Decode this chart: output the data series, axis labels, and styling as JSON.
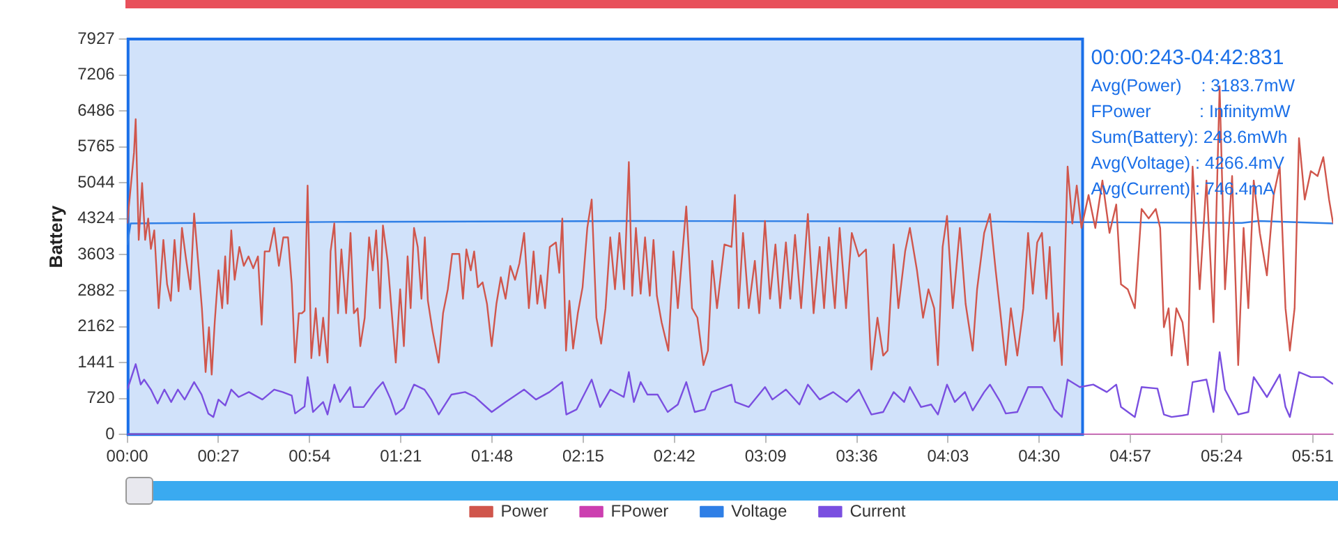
{
  "chart_data": {
    "type": "line",
    "ylabel": "Battery",
    "xlim": [
      0,
      357
    ],
    "ylim": [
      0,
      7927
    ],
    "xticks": [
      {
        "value": 0,
        "label": "00:00"
      },
      {
        "value": 27,
        "label": "00:27"
      },
      {
        "value": 54,
        "label": "00:54"
      },
      {
        "value": 81,
        "label": "01:21"
      },
      {
        "value": 108,
        "label": "01:48"
      },
      {
        "value": 135,
        "label": "02:15"
      },
      {
        "value": 162,
        "label": "02:42"
      },
      {
        "value": 189,
        "label": "03:09"
      },
      {
        "value": 216,
        "label": "03:36"
      },
      {
        "value": 243,
        "label": "04:03"
      },
      {
        "value": 270,
        "label": "04:30"
      },
      {
        "value": 297,
        "label": "04:57"
      },
      {
        "value": 324,
        "label": "05:24"
      },
      {
        "value": 351,
        "label": "05:51"
      }
    ],
    "yticks": [
      0,
      720,
      1441,
      2162,
      2882,
      3603,
      4324,
      5044,
      5765,
      6486,
      7206,
      7927
    ],
    "legend": "bottom",
    "marker": "none",
    "line_style": "solid",
    "bands": [
      {
        "axis": "x",
        "from": 0.243,
        "to": 282.831,
        "label": "00:00:243-04:42:831",
        "color": "#1a6fe8"
      }
    ],
    "annotations": [
      "Avg(Power)    : 3183.7mW",
      "FPower          : InfinitymW",
      "Sum(Battery): 248.6mWh",
      "Avg(Voltage) : 4266.4mV",
      "Avg(Current) : 746.4mA"
    ],
    "series": [
      {
        "name": "Power",
        "color": "#d0564c",
        "x": [
          0,
          2,
          2.5,
          3.4,
          4.4,
          5.3,
          6.2,
          7,
          8,
          9.3,
          10.7,
          11.8,
          12.9,
          14,
          15.2,
          16.2,
          17.3,
          18.7,
          19.8,
          21.2,
          22.1,
          23.2,
          24.2,
          25,
          25.9,
          27,
          28.1,
          29,
          29.7,
          30.8,
          31.8,
          33.2,
          34.5,
          35.9,
          37.3,
          38.7,
          39.8,
          40.7,
          42.1,
          43.5,
          44.9,
          46.2,
          47.6,
          48.7,
          49.7,
          50.8,
          51.7,
          52.5,
          53.4,
          54.5,
          55.8,
          56.9,
          58,
          59.3,
          60.2,
          61.3,
          62.4,
          63.4,
          64.8,
          66.1,
          67.1,
          68.2,
          69,
          70.3,
          71.6,
          72.7,
          73.7,
          74.8,
          75.7,
          77.1,
          78.2,
          79.5,
          80.8,
          81.9,
          83,
          83.9,
          84.9,
          86,
          87.1,
          88.1,
          89,
          90.4,
          92.2,
          93.5,
          94.9,
          96.2,
          98.3,
          99.4,
          100.4,
          101.7,
          102.7,
          103.8,
          105.2,
          106.5,
          107.9,
          109.3,
          110.6,
          112,
          113.4,
          114.8,
          116.1,
          117.5,
          118.9,
          120.3,
          121.4,
          122.4,
          123.7,
          125.1,
          126.9,
          127.9,
          128.8,
          129.9,
          130.9,
          132,
          133.4,
          134.8,
          136.2,
          137.5,
          138.9,
          140.3,
          141.6,
          143,
          144.4,
          145.7,
          147.1,
          148.5,
          149.5,
          150.6,
          152,
          153.3,
          154.7,
          155.8,
          156.8,
          158.2,
          160.2,
          161.7,
          163,
          165.5,
          167.2,
          168.8,
          170.6,
          171.9,
          173.2,
          174.6,
          176.8,
          178.9,
          179.9,
          181,
          182.3,
          184,
          185.8,
          187.1,
          188.8,
          190.3,
          191.9,
          193.3,
          195,
          196.3,
          197.7,
          199.5,
          201.5,
          203.2,
          205,
          206.3,
          207.7,
          209.5,
          210.9,
          212.8,
          214.5,
          216.6,
          218.7,
          220.3,
          222.1,
          223.8,
          225.1,
          226.9,
          228.3,
          230.3,
          231.7,
          233.8,
          235.6,
          237.2,
          238.9,
          240,
          241.4,
          242.7,
          244.4,
          246.5,
          248.2,
          250.3,
          251.6,
          253.7,
          255.4,
          257.1,
          258.5,
          260.1,
          261.6,
          263.5,
          265.3,
          266.7,
          268.1,
          269.4,
          270.8,
          272.1,
          273.1,
          274.5,
          275.6,
          276.7,
          278.4,
          279.8,
          281.1,
          282.5,
          284.6,
          286.6,
          288.7,
          290.8,
          292.8,
          294.2,
          296.2,
          298.3,
          300.3,
          302.4,
          304.5,
          305.8,
          306.9,
          308.3,
          309.2,
          310.6,
          312.4,
          314,
          315.4,
          317.5,
          319.5,
          321.6,
          323.4,
          325,
          327.1,
          328.9,
          330.5,
          331.9,
          333.5,
          335.3,
          337.4,
          339.4,
          341.2,
          342.9,
          344.2,
          345.6,
          346.9,
          348.6,
          350.4,
          352.4,
          354.1,
          355.8,
          357
        ],
        "values": [
          4230,
          5650,
          6320,
          3900,
          5040,
          3900,
          4330,
          3720,
          4090,
          2530,
          3900,
          3010,
          2680,
          3900,
          2870,
          4140,
          3570,
          2910,
          4430,
          3290,
          2530,
          1250,
          2150,
          1200,
          2250,
          3290,
          2530,
          3570,
          2620,
          4090,
          3100,
          3760,
          3380,
          3570,
          3330,
          3570,
          2200,
          3670,
          3670,
          4140,
          3380,
          3950,
          3950,
          3010,
          1440,
          2430,
          2430,
          2480,
          4990,
          1530,
          2530,
          1580,
          2340,
          1440,
          3670,
          4230,
          2430,
          3710,
          2430,
          4040,
          2430,
          2530,
          1770,
          2340,
          3950,
          3290,
          4090,
          2530,
          4190,
          3480,
          2530,
          1440,
          2910,
          1770,
          3570,
          2530,
          4140,
          3760,
          2720,
          3950,
          2680,
          2070,
          1440,
          2430,
          2910,
          3620,
          3620,
          2720,
          3710,
          3290,
          3670,
          2950,
          3050,
          2620,
          1770,
          2620,
          3150,
          2720,
          3380,
          3100,
          3430,
          4040,
          2530,
          3670,
          2620,
          3190,
          2530,
          3760,
          3850,
          3240,
          4330,
          1680,
          2680,
          1720,
          2430,
          2950,
          4140,
          4710,
          2340,
          1820,
          2530,
          3950,
          2910,
          4040,
          2910,
          5460,
          2780,
          4140,
          2820,
          3950,
          2780,
          3900,
          2780,
          2250,
          1680,
          3670,
          2530,
          4570,
          2530,
          2340,
          1390,
          1680,
          3480,
          2530,
          3810,
          3760,
          4800,
          2530,
          4040,
          2530,
          3480,
          2430,
          4280,
          2720,
          3810,
          2530,
          3850,
          2720,
          4000,
          2530,
          4420,
          2430,
          3760,
          2530,
          3950,
          2530,
          4140,
          2530,
          4040,
          3570,
          3710,
          1300,
          2340,
          1580,
          1680,
          3810,
          2530,
          3670,
          4140,
          3290,
          2340,
          2910,
          2530,
          1390,
          3760,
          4380,
          2530,
          4140,
          2620,
          1680,
          2910,
          4040,
          4420,
          3290,
          2430,
          1390,
          2530,
          1580,
          2530,
          4040,
          2820,
          3850,
          4040,
          2720,
          3760,
          1870,
          2430,
          1390,
          5370,
          4230,
          4990,
          4140,
          4800,
          4140,
          5090,
          4040,
          4610,
          3010,
          2910,
          2530,
          4520,
          4330,
          4520,
          4140,
          2150,
          2530,
          1580,
          2530,
          2250,
          1390,
          5370,
          2910,
          5090,
          2250,
          6980,
          2910,
          5180,
          1390,
          4140,
          2530,
          5090,
          4040,
          3190,
          4800,
          5370,
          2530,
          1680,
          2530,
          5940,
          4710,
          5280,
          5180,
          5560,
          4710,
          4230
        ]
      },
      {
        "name": "FPower",
        "color": "#cc3fb0",
        "x": [
          0,
          357
        ],
        "values": [
          0,
          0
        ]
      },
      {
        "name": "Voltage",
        "color": "#2f7fe6",
        "x": [
          0,
          1,
          60,
          150,
          250,
          300,
          330,
          335,
          357
        ],
        "values": [
          3800,
          4230,
          4260,
          4280,
          4270,
          4250,
          4240,
          4280,
          4230
        ]
      },
      {
        "name": "Current",
        "color": "#7a4fe0",
        "x": [
          0,
          1,
          2.5,
          4,
          5,
          7,
          9,
          11,
          13,
          15,
          17,
          19.8,
          22,
          24,
          25.5,
          27,
          29,
          30.8,
          33,
          36,
          40,
          43.5,
          46,
          48.7,
          49.7,
          52.5,
          53.4,
          55,
          58,
          59.3,
          61.3,
          63,
          66,
          67,
          70,
          73.7,
          75.7,
          78,
          79.5,
          81.9,
          84.9,
          88,
          90,
          92.2,
          96,
          100,
          103,
          107.9,
          112,
          117.5,
          121,
          125,
          128.8,
          130,
          133,
          137.5,
          140,
          143,
          147,
          148.5,
          150,
          152,
          154,
          157,
          160,
          163,
          165.5,
          168,
          171,
          173,
          178.9,
          180,
          184,
          188.8,
          191,
          195,
          199,
          201.5,
          205,
          209,
          213,
          216.6,
          220.3,
          223.8,
          226.9,
          230,
          231.7,
          235,
          238,
          240,
          242.7,
          245,
          248,
          250.3,
          253.7,
          255.4,
          258.5,
          260.1,
          263.5,
          266.7,
          270.8,
          273,
          274.5,
          276.7,
          278.4,
          282,
          286,
          290,
          292.8,
          294.2,
          298.3,
          300.3,
          305,
          306.9,
          309.2,
          312.4,
          314,
          315.4,
          319.5,
          321.6,
          323.4,
          325,
          328.9,
          331.9,
          333.5,
          337.4,
          341.2,
          342.9,
          344.2,
          346.9,
          350.4,
          354.1,
          357
        ],
        "values": [
          900,
          1100,
          1410,
          1000,
          1100,
          900,
          620,
          900,
          650,
          900,
          700,
          1050,
          800,
          420,
          350,
          700,
          580,
          900,
          750,
          850,
          700,
          900,
          850,
          780,
          420,
          560,
          1150,
          450,
          650,
          400,
          1000,
          650,
          950,
          550,
          550,
          900,
          1050,
          700,
          400,
          530,
          1000,
          900,
          700,
          400,
          800,
          850,
          750,
          450,
          650,
          900,
          700,
          850,
          1050,
          400,
          500,
          1100,
          550,
          900,
          750,
          1250,
          650,
          1050,
          800,
          800,
          450,
          600,
          1050,
          450,
          500,
          850,
          1000,
          650,
          550,
          950,
          700,
          900,
          600,
          1000,
          700,
          850,
          650,
          900,
          400,
          450,
          850,
          650,
          950,
          550,
          600,
          400,
          1000,
          650,
          850,
          480,
          850,
          1000,
          650,
          420,
          450,
          950,
          950,
          700,
          500,
          350,
          1100,
          950,
          1000,
          850,
          1000,
          550,
          350,
          950,
          920,
          400,
          350,
          380,
          400,
          1050,
          1100,
          450,
          1650,
          900,
          400,
          450,
          1150,
          750,
          1200,
          550,
          350,
          1250,
          1150,
          1150,
          1010
        ]
      }
    ]
  }
}
